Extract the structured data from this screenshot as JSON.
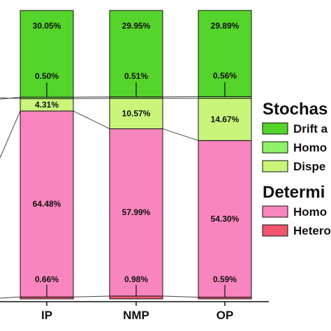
{
  "chart_data": {
    "type": "bar",
    "stacked": true,
    "normalized": true,
    "categories": [
      "IP",
      "NMP",
      "OP"
    ],
    "series": [
      {
        "name": "Hetero",
        "color": "#f0566e",
        "values": [
          0.66,
          0.98,
          0.59
        ]
      },
      {
        "name": "Homo",
        "color": "#f885bd",
        "values": [
          64.48,
          57.99,
          54.3
        ]
      },
      {
        "name": "Dispe",
        "color": "#c9f57a",
        "values": [
          4.31,
          10.57,
          14.67
        ]
      },
      {
        "name": "Homo",
        "color": "#8ff06a",
        "values": [
          0.5,
          0.51,
          0.56
        ]
      },
      {
        "name": "Drift a",
        "color": "#55d42b",
        "values": [
          30.05,
          29.95,
          29.89
        ]
      }
    ],
    "labels": [
      [
        "0.66%",
        "0.98%",
        "0.59%"
      ],
      [
        "64.48%",
        "57.99%",
        "54.30%"
      ],
      [
        "4.31%",
        "10.57%",
        "14.67%"
      ],
      [
        "0.50%",
        "0.51%",
        "0.56%"
      ],
      [
        "30.05%",
        "29.95%",
        "29.89%"
      ]
    ],
    "ylim": [
      0,
      100
    ],
    "legend": {
      "placement": "right",
      "groups": [
        {
          "heading": "Stochas",
          "items": [
            {
              "label": "Drift a",
              "color": "#55d42b"
            },
            {
              "label": "Homo",
              "color": "#8ff06a"
            },
            {
              "label": "Dispe",
              "color": "#c9f57a"
            }
          ]
        },
        {
          "heading": "Determi",
          "items": [
            {
              "label": "Homo",
              "color": "#f885bd"
            },
            {
              "label": "Hetero",
              "color": "#f0566e"
            }
          ]
        }
      ]
    }
  }
}
